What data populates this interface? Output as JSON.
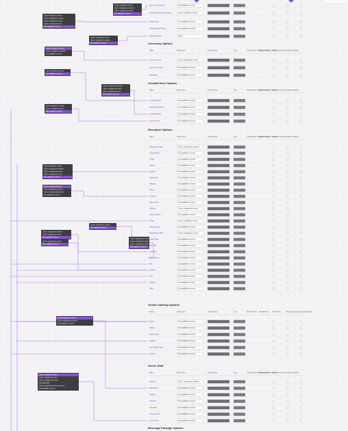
{
  "top_table": {
    "rows": [
      {
        "option": "Day-of Coordinator",
        "pricing": "Not available at venue"
      },
      {
        "option": "Wedding Planning Services",
        "pricing": "Cost is included in venue"
      },
      {
        "option": "Bridal Suite",
        "pricing": "Not available at venue"
      },
      {
        "option": "Getting Ready Room",
        "pricing": "Not available at venue"
      },
      {
        "option": "Additional Hour",
        "pricing": "Select"
      }
    ]
  },
  "sections": [
    {
      "title": "Ceremony Options",
      "columns": [
        "Option",
        "Pricing Type",
        "Deferred Type",
        "Cost",
        "Cost Base per Number of Guests",
        "Required with # of guests",
        "Required for venue",
        "Selected (visible)"
      ],
      "rows": [
        {
          "option": "Ceremony Site",
          "pricing": "Cost is charged per event"
        },
        {
          "option": "Ceremony Chairs",
          "pricing": "Not available at venue"
        },
        {
          "option": "Rehearsal",
          "pricing": "Not available at venue"
        }
      ]
    },
    {
      "title": "Cocktail Hour Options",
      "columns": [
        "Option",
        "Pricing Type",
        "Deferred Type",
        "Cost",
        "Cost Base per Number of Guests",
        "Required with # of guests",
        "Required for venue",
        "Selected (visible)"
      ],
      "rows": [
        {
          "option": "Cocktail Space",
          "pricing": "Not available at venue"
        },
        {
          "option": "Passed Appetizers",
          "pricing": "Not available at venue"
        },
        {
          "option": "Cocktail Tables",
          "pricing": "Not available at venue"
        },
        {
          "option": "Lawn Games",
          "pricing": "Not available at venue"
        }
      ]
    },
    {
      "title": "Reception Options",
      "columns": [
        "Option",
        "Pricing Type",
        "Deferred Type",
        "Cost",
        "Cost Base per Number of Guests",
        "Required with # of guests",
        "Required for venue",
        "Selected (visible)"
      ],
      "rows": [
        {
          "option": "Reception Space",
          "pricing": "Cost is charged per person"
        },
        {
          "option": "Guest Tables",
          "pricing": "Not available at venue"
        },
        {
          "option": "Chairs",
          "pricing": "Not available at venue"
        },
        {
          "option": "Linens",
          "pricing": "Not available at venue"
        },
        {
          "option": "Napkins",
          "pricing": "Not available at venue"
        },
        {
          "option": "Glassware",
          "pricing": "Not available at venue"
        },
        {
          "option": "Flatware",
          "pricing": "Not available at venue"
        },
        {
          "option": "China",
          "pricing": "Not available at venue"
        },
        {
          "option": "Chargers",
          "pricing": "Not available at venue"
        },
        {
          "option": "Dance Floor",
          "pricing": "Not available at venue"
        },
        {
          "option": "Lighting",
          "pricing": "Cost is charged per event"
        },
        {
          "option": "Sound System",
          "pricing": "Not available at venue"
        },
        {
          "option": "Stage",
          "pricing": "Cost is included in venue"
        },
        {
          "option": "Cake Cutting",
          "pricing": "Not available at venue"
        },
        {
          "option": "Sweetheart Table",
          "pricing": "Cost is charged per event"
        },
        {
          "option": "Head Table",
          "pricing": "Not available at venue"
        },
        {
          "option": "Gift Table",
          "pricing": "Not available at venue"
        },
        {
          "option": "Card Box",
          "pricing": "Not available at venue"
        },
        {
          "option": "Photo Booth",
          "pricing": "Not available at venue"
        },
        {
          "option": "Bar",
          "pricing": "Not available at venue"
        },
        {
          "option": "Heaters",
          "pricing": "Not available at venue"
        },
        {
          "option": "Tent",
          "pricing": "Not available at venue"
        },
        {
          "option": "Parking",
          "pricing": "Not available at venue"
        },
        {
          "option": "Valet",
          "pricing": "Not available at venue"
        }
      ]
    },
    {
      "title": "Onsite Catering Options",
      "columns": [
        "Option",
        "Pricing Type",
        "Deferred Type",
        "Cost",
        "Minimum Price",
        "Variable Price",
        "Fixed Price",
        "Required for venue",
        "Selected (visible)"
      ],
      "rows": [
        {
          "option": "Buffet",
          "pricing": "Not available at venue"
        },
        {
          "option": "Plated",
          "pricing": "Not available at venue"
        },
        {
          "option": "Family Style",
          "pricing": "Not available at venue"
        },
        {
          "option": "Stations",
          "pricing": "Not available at venue"
        },
        {
          "option": "Late Night Snack",
          "pricing": "Not available at venue"
        },
        {
          "option": "Dessert",
          "pricing": "Not available at venue"
        }
      ]
    },
    {
      "title": "Server Staff",
      "columns": [
        "Option",
        "Pricing Type",
        "Deferred Type",
        "Cost",
        "Cost Base per Number of Guests",
        "Required with # of guests",
        "Required for venue",
        "Selected (visible)"
      ],
      "rows": [
        {
          "option": "Servers",
          "pricing": "Cost is charged per person"
        },
        {
          "option": "Bartenders",
          "pricing": "Not available at venue"
        },
        {
          "option": "Captain",
          "pricing": "Not available at venue"
        },
        {
          "option": "Security",
          "pricing": "Not available at venue"
        },
        {
          "option": "Attendant",
          "pricing": "Not available at venue"
        },
        {
          "option": "Cleanup Crew",
          "pricing": "Not available at venue"
        },
        {
          "option": "Coat Check",
          "pricing": "Not available at venue"
        }
      ]
    },
    {
      "title": "Beverage Package Options",
      "columns": [],
      "rows": []
    }
  ],
  "callouts": [
    {
      "items": [
        "Cost is included in venue",
        "Cost is charged per person",
        "Cost is charged per event",
        "Not available at venue"
      ],
      "selected": 3
    },
    {
      "items": [
        "Cost is included in venue",
        "Cost is charged per person",
        "Cost is charged per event",
        "Cost is charged per hour",
        "Not available at venue"
      ],
      "selected": 4
    },
    {
      "items": [
        "Cost is charged per event",
        "Cost is charged per person",
        "Not available at venue"
      ],
      "selected": 2
    },
    {
      "items": [
        "Cost is included in venue",
        "Cost is charged per person",
        "Not available at venue"
      ],
      "selected": 0
    },
    {
      "items": [
        "Cost is included in venue",
        "Not available at venue"
      ],
      "selected": 1
    },
    {
      "items": [
        "Cost is charged per person",
        "Cost is charged per event",
        "Cost is charged per hour",
        "Not available at venue"
      ],
      "selected": 3
    },
    {
      "items": [
        "Cost is included in venue",
        "Cost is charged per item",
        "Not available at venue"
      ],
      "selected": 2
    },
    {
      "items": [
        "Cost is included in venue",
        "Cost is charged per person",
        "Cost is charged per event",
        "Cost is charged per hour",
        "Not available at venue"
      ],
      "selected": 4
    },
    {
      "items": [
        "Cost is charged per item",
        "Cost is charged per event",
        "Cost is included with rental",
        "Not available at venue"
      ],
      "selected": 0
    },
    {
      "items": [
        "Cost is charged per person",
        "Not available at venue"
      ],
      "selected": 1
    },
    {
      "items": [
        "Cost is charged per event",
        "Cost is charged per table",
        "Cost is charged per chair",
        "Not available at venue"
      ],
      "selected": 3
    },
    {
      "items": [
        "Cost is charged per person",
        "Cost is charged per event",
        "Not available at venue"
      ],
      "selected": 2
    },
    {
      "items": [
        "Cost is charged per event",
        "Not available at venue"
      ],
      "selected": 1
    },
    {
      "items": [
        "Cost is included in venue",
        "Cost is charged per person",
        "Not available at venue"
      ],
      "selected": 0
    },
    {
      "items": [
        "Cost is included in venue",
        "Cost is charged per hour",
        "Cost is charged per server",
        "Not applicable",
        "Cost is charged per hour per server",
        "Not available at venue"
      ],
      "selected": 0
    }
  ]
}
